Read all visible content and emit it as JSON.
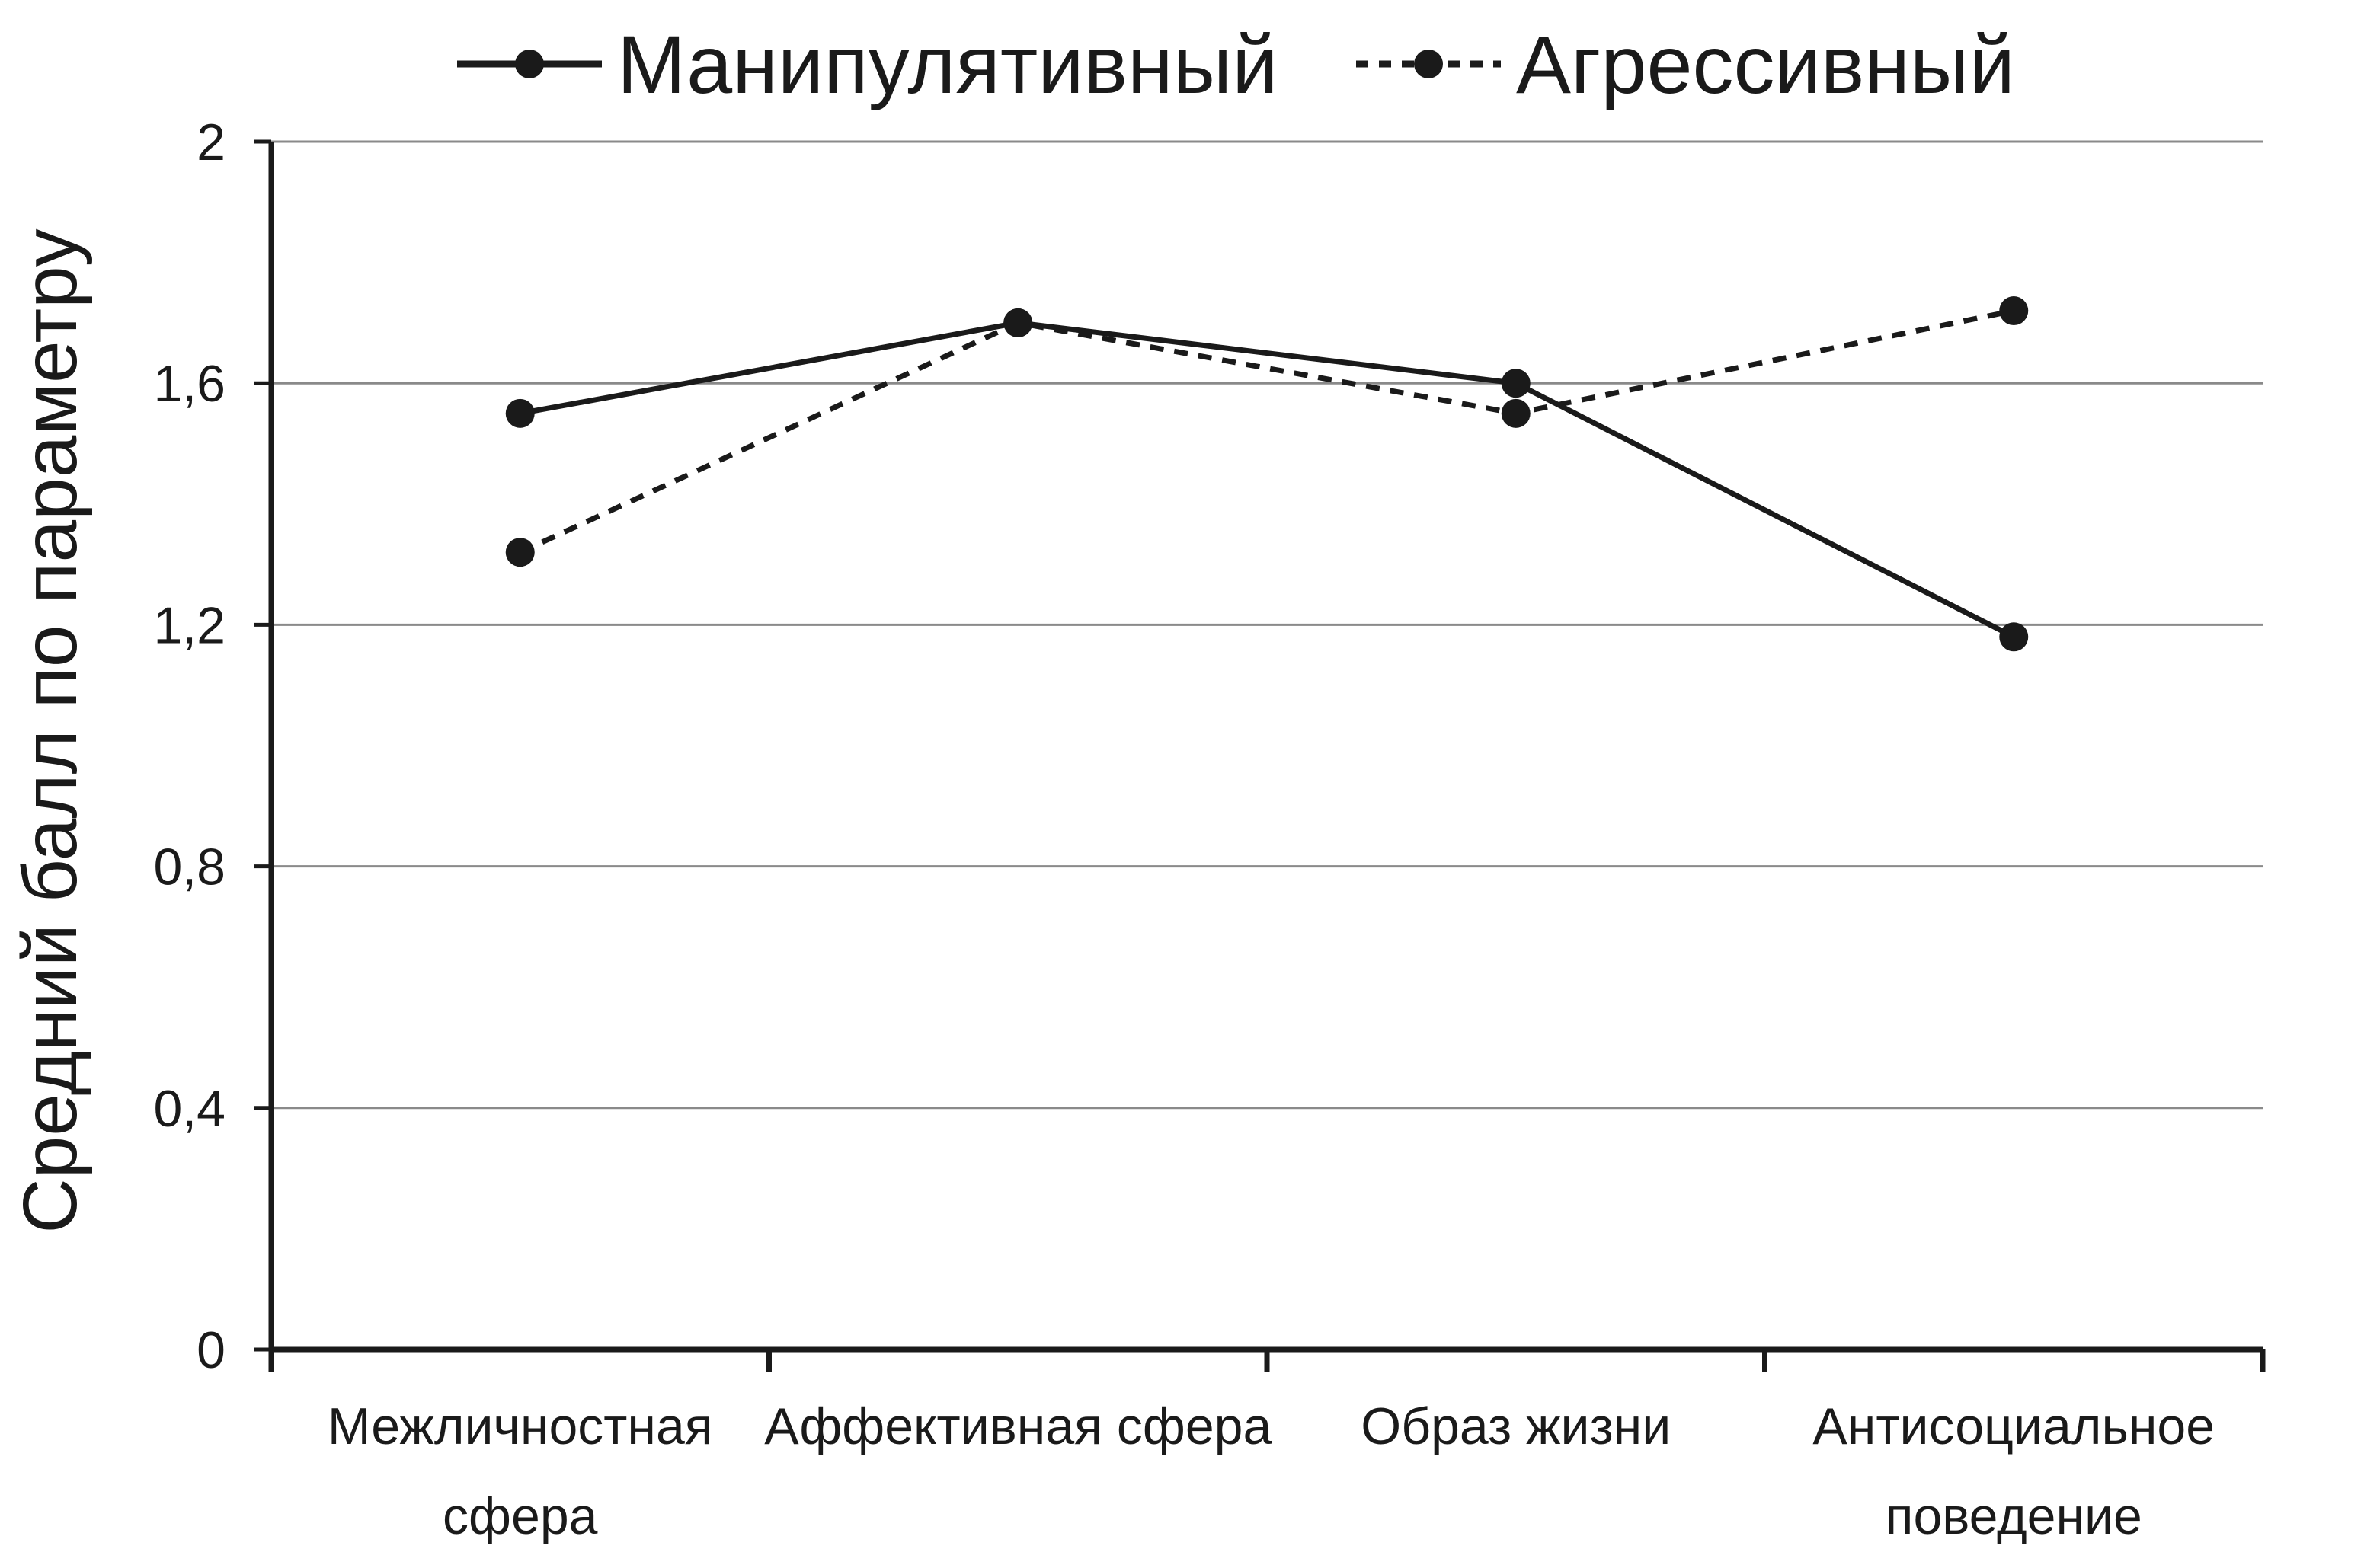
{
  "chart_data": {
    "type": "line",
    "title": "",
    "xlabel": "",
    "ylabel": "Средний балл по параметру",
    "categories": [
      [
        "Межличностная",
        "сфера"
      ],
      [
        "Аффективная сфера"
      ],
      [
        "Образ жизни"
      ],
      [
        "Антисоциальное",
        "поведение"
      ]
    ],
    "ylim": [
      0,
      2
    ],
    "yticks": [
      0,
      0.4,
      0.8,
      1.2,
      1.6,
      2
    ],
    "ytick_labels": [
      "0",
      "0,4",
      "0,8",
      "1,2",
      "1,6",
      "2"
    ],
    "grid": true,
    "legend_position": "top-center",
    "series": [
      {
        "name": "Манипулятивный",
        "values": [
          1.55,
          1.7,
          1.6,
          1.18
        ],
        "line_style": "solid",
        "color": "#1a1a1a"
      },
      {
        "name": "Агрессивный",
        "values": [
          1.32,
          1.7,
          1.55,
          1.72
        ],
        "line_style": "dashed",
        "color": "#1a1a1a"
      }
    ]
  }
}
